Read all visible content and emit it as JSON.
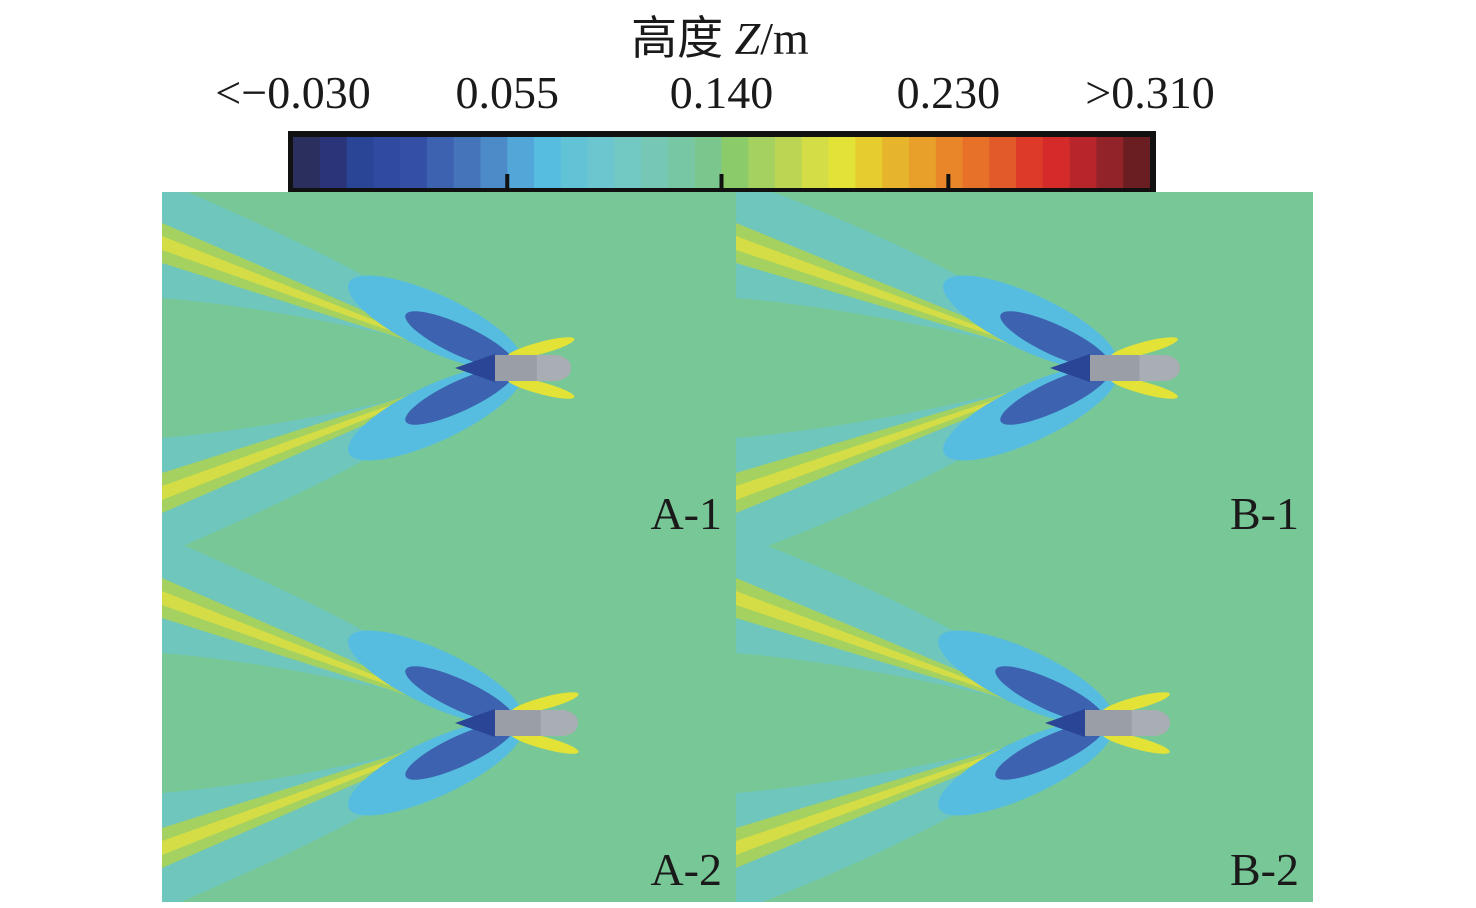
{
  "chart_data": {
    "type": "heatmap",
    "subtype": "contour",
    "colorbar": {
      "title_prefix": "高度",
      "title_var": "Z",
      "title_unit": "/m",
      "min": -0.03,
      "max": 0.31,
      "levels": 32,
      "ticks": [
        {
          "value": -0.03,
          "label": "<−0.030"
        },
        {
          "value": 0.055,
          "label": "0.055"
        },
        {
          "value": 0.14,
          "label": "0.140"
        },
        {
          "value": 0.23,
          "label": "0.230"
        },
        {
          "value": 0.31,
          "label": ">0.310"
        }
      ],
      "colors": [
        "#2a2f5e",
        "#2b3478",
        "#2a4596",
        "#2f4aa0",
        "#3450a6",
        "#3c62b0",
        "#4674bb",
        "#4d8bc8",
        "#52a6d8",
        "#57bde0",
        "#63c3d6",
        "#6cc6cf",
        "#72c8c3",
        "#76c8b4",
        "#78c7a4",
        "#7bc68d",
        "#8ccb6a",
        "#a4d160",
        "#bcd654",
        "#d4dd45",
        "#e3e236",
        "#e7cc30",
        "#e6b52c",
        "#e8a02a",
        "#e9862a",
        "#e8712a",
        "#e35a2a",
        "#dd3a2a",
        "#d52a2a",
        "#b8262c",
        "#922328",
        "#6a1e22"
      ]
    },
    "panels": [
      {
        "label": "A-1"
      },
      {
        "label": "B-1"
      },
      {
        "label": "A-2"
      },
      {
        "label": "B-2"
      }
    ]
  }
}
